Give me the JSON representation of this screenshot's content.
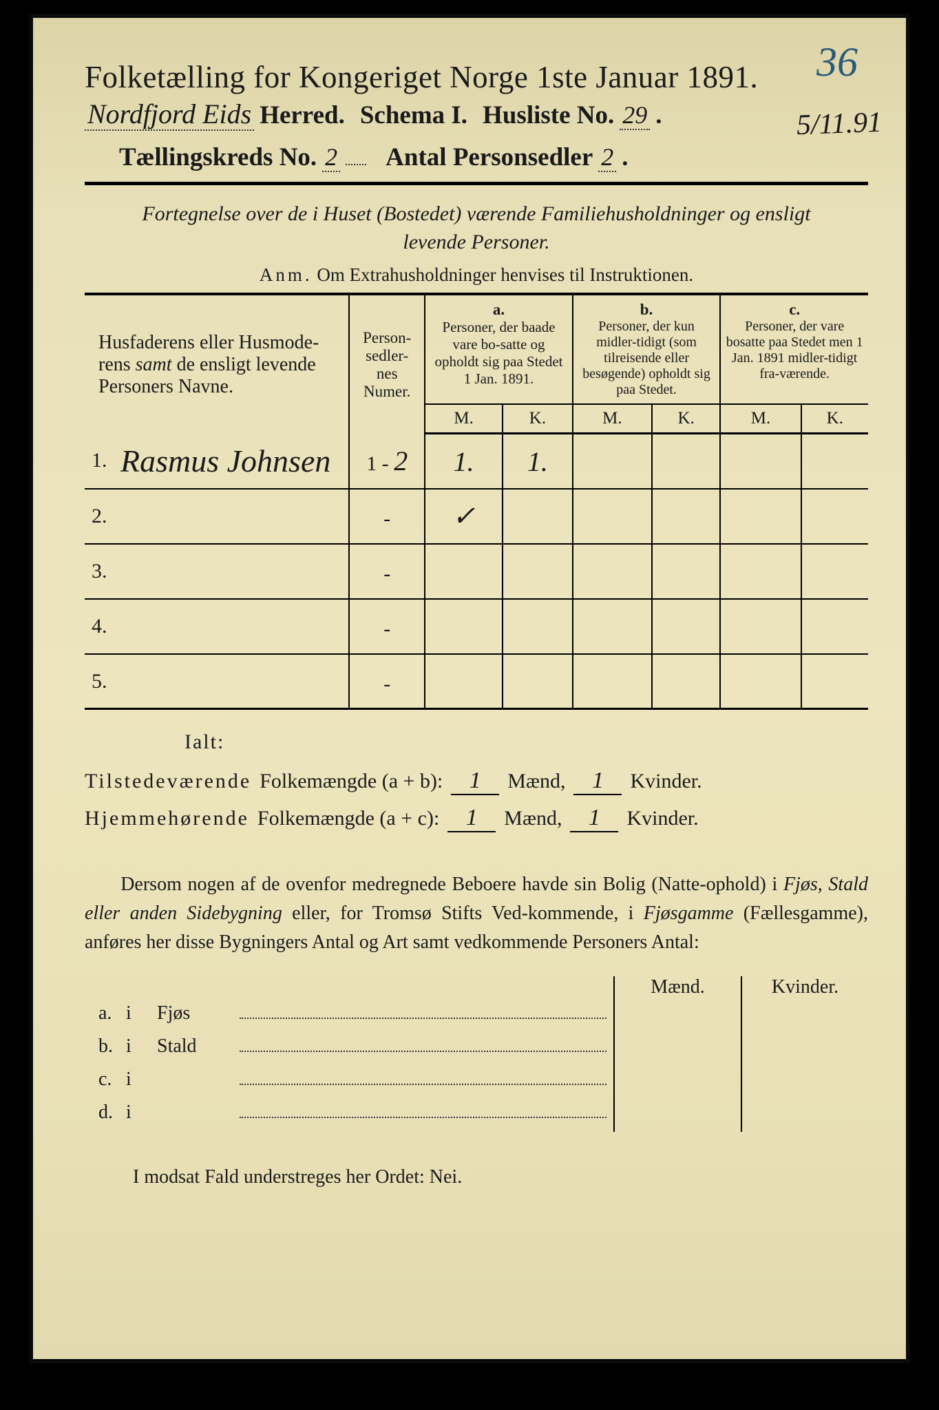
{
  "annotations": {
    "top_right": "36",
    "side_right": "5/11.91"
  },
  "header": {
    "title": "Folketælling for Kongeriget Norge 1ste Januar 1891.",
    "herred_hw": "Nordfjord Eids",
    "herred_label": "Herred.",
    "schema_label": "Schema I.",
    "husliste_label": "Husliste No.",
    "husliste_no": "29",
    "kreds_label": "Tællingskreds No.",
    "kreds_no": "2",
    "antal_label": "Antal Personsedler",
    "antal_no": "2"
  },
  "subheading": {
    "line1": "Fortegnelse over de i Huset (Bostedet) værende Familiehusholdninger og ensligt",
    "line2": "levende Personer.",
    "anm_label": "Anm.",
    "anm_text": "Om Extrahusholdninger henvises til Instruktionen."
  },
  "table": {
    "col_names": {
      "line1": "Husfaderens eller Husmode-",
      "line2": "rens ",
      "samt": "samt",
      "line3": " de ensligt levende",
      "line4": "Personers Navne."
    },
    "col_numer": "Person-\nsedler-\nnes\nNumer.",
    "col_a": {
      "label": "a.",
      "text": "Personer, der baade vare bo-satte og opholdt sig paa Stedet 1 Jan. 1891."
    },
    "col_b": {
      "label": "b.",
      "text": "Personer, der kun midler-tidigt (som tilreisende eller besøgende) opholdt sig paa Stedet."
    },
    "col_c": {
      "label": "c.",
      "text": "Personer, der vare bosatte paa Stedet men 1 Jan. 1891 midler-tidigt fra-værende."
    },
    "m": "M.",
    "k": "K.",
    "rows": [
      {
        "n": "1.",
        "name": "Rasmus Johnsen",
        "numer_prefix": "1 -",
        "numer_hw": "2",
        "a_m": "1.",
        "a_k": "1.",
        "b_m": "",
        "b_k": "",
        "c_m": "",
        "c_k": ""
      },
      {
        "n": "2.",
        "name": "",
        "numer_prefix": "-",
        "numer_hw": "",
        "a_m": "✓",
        "a_k": "",
        "b_m": "",
        "b_k": "",
        "c_m": "",
        "c_k": ""
      },
      {
        "n": "3.",
        "name": "",
        "numer_prefix": "-",
        "numer_hw": "",
        "a_m": "",
        "a_k": "",
        "b_m": "",
        "b_k": "",
        "c_m": "",
        "c_k": ""
      },
      {
        "n": "4.",
        "name": "",
        "numer_prefix": "-",
        "numer_hw": "",
        "a_m": "",
        "a_k": "",
        "b_m": "",
        "b_k": "",
        "c_m": "",
        "c_k": ""
      },
      {
        "n": "5.",
        "name": "",
        "numer_prefix": "-",
        "numer_hw": "",
        "a_m": "",
        "a_k": "",
        "b_m": "",
        "b_k": "",
        "c_m": "",
        "c_k": ""
      }
    ]
  },
  "totals": {
    "ialt": "Ialt:",
    "row1_label": "Tilstedeværende",
    "row1_rest": "Folkemængde (a + b):",
    "row2_label": "Hjemmehørende",
    "row2_rest": "Folkemængde (a + c):",
    "maend": "Mænd,",
    "kvinder": "Kvinder.",
    "r1_m": "1",
    "r1_k": "1",
    "r2_m": "1",
    "r2_k": "1"
  },
  "paragraph": {
    "p1": "Dersom nogen af de ovenfor medregnede Beboere havde sin Bolig (Natte-ophold) i ",
    "em1": "Fjøs, Stald eller anden Sidebygning",
    "p2": " eller, for Tromsø Stifts Ved-kommende, i ",
    "em2": "Fjøsgamme",
    "p3": " (Fællesgamme), anføres her disse Bygningers Antal og Art samt vedkommende Personers Antal:"
  },
  "bottom_table": {
    "maend": "Mænd.",
    "kvinder": "Kvinder.",
    "rows": [
      {
        "lab": "a.",
        "i": "i",
        "type": "Fjøs"
      },
      {
        "lab": "b.",
        "i": "i",
        "type": "Stald"
      },
      {
        "lab": "c.",
        "i": "i",
        "type": ""
      },
      {
        "lab": "d.",
        "i": "i",
        "type": ""
      }
    ]
  },
  "bottom_line": "I modsat Fald understreges her Ordet: Nei.",
  "styling": {
    "page_bg": "#e8e0b8",
    "text_color": "#1a1a1a",
    "annot_color": "#2a5a7a",
    "border_color": "#000000",
    "title_fontsize": 45,
    "body_fontsize": 28,
    "handwriting_fontsize": 40
  }
}
